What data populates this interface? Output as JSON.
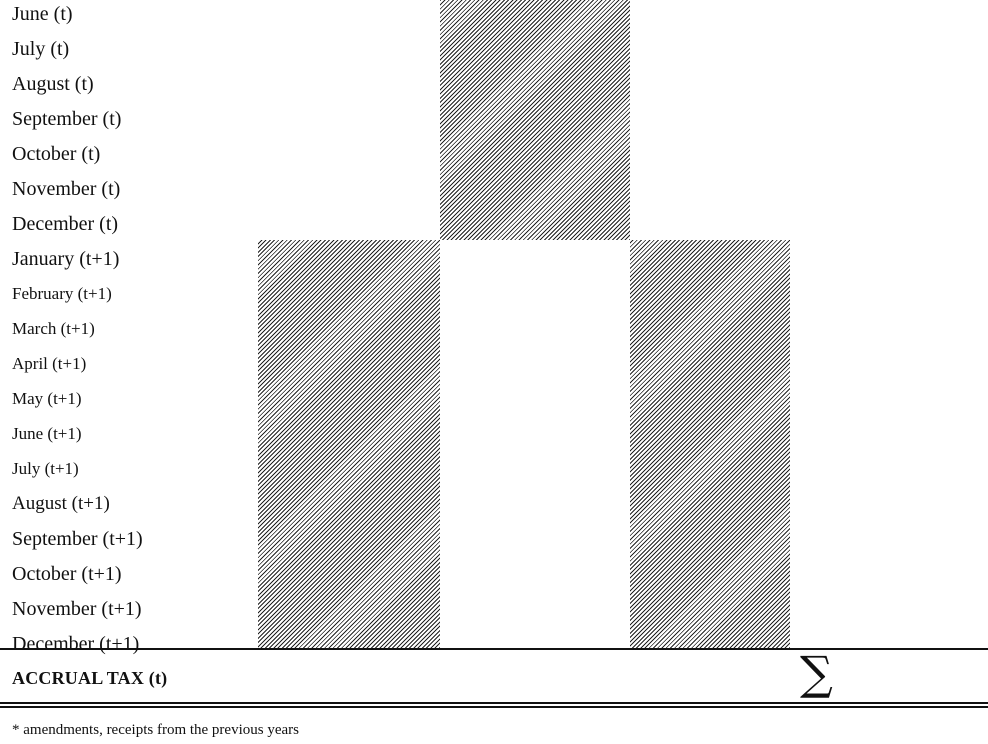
{
  "rows": [
    {
      "label": "June (t)"
    },
    {
      "label": "July (t)"
    },
    {
      "label": "August (t)"
    },
    {
      "label": "September (t)"
    },
    {
      "label": "October (t)"
    },
    {
      "label": "November (t)"
    },
    {
      "label": "December (t)"
    },
    {
      "label": "January (t+1)"
    },
    {
      "label": "February (t+1)"
    },
    {
      "label": "March (t+1)"
    },
    {
      "label": "April (t+1)"
    },
    {
      "label": "May (t+1)"
    },
    {
      "label": "June (t+1)"
    },
    {
      "label": "July (t+1)"
    },
    {
      "label": "August (t+1)"
    },
    {
      "label": "September (t+1)"
    },
    {
      "label": "October (t+1)"
    },
    {
      "label": "November (t+1)"
    },
    {
      "label": "December (t+1)"
    }
  ],
  "total": {
    "label": "ACCRUAL TAX (t)",
    "symbol": "∑"
  },
  "footnote": "* amendments, receipts from the previous years",
  "colors": {
    "hatch": "#222222",
    "text": "#111111"
  }
}
